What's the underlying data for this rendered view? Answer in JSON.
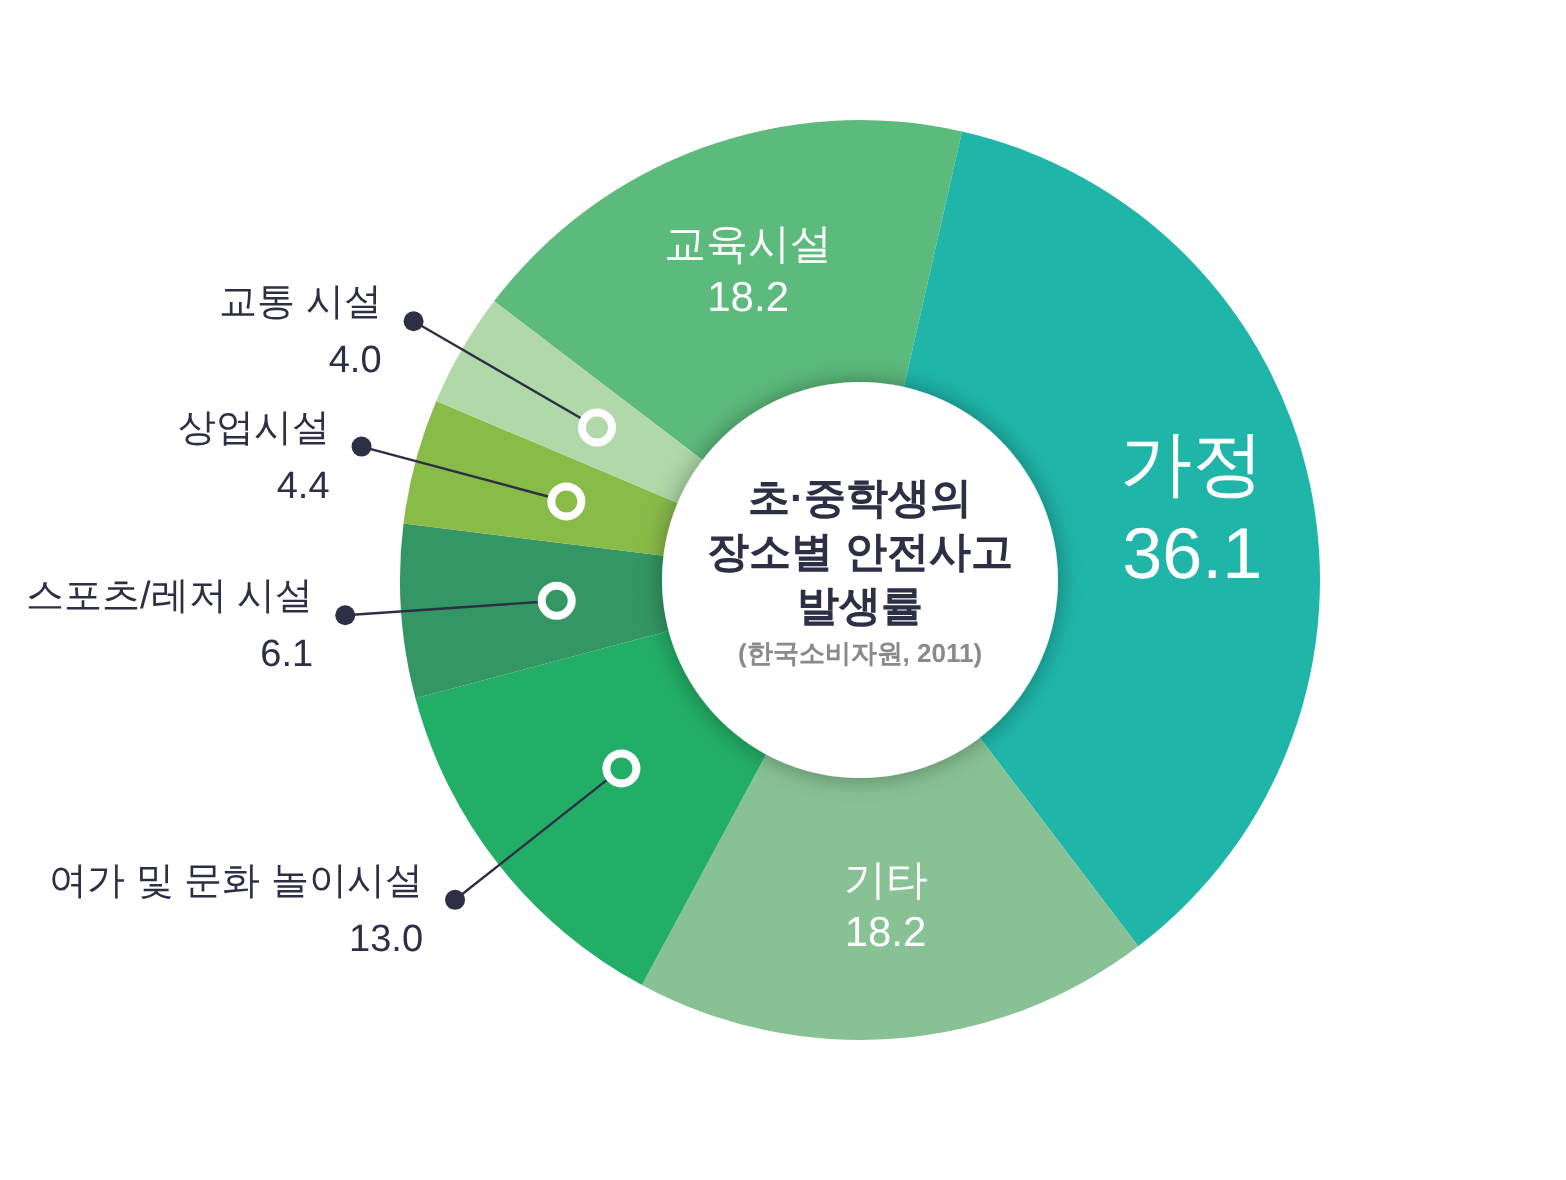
{
  "chart_data": {
    "type": "donut",
    "title": "초·중학생의 장소별 안전사고 발생률",
    "subtitle": "(한국소비자원, 2011)",
    "categories": [
      "교육시설",
      "가정",
      "기타",
      "여가 및 문화 놀이시설",
      "스포츠/레저 시설",
      "상업시설",
      "교통 시설"
    ],
    "values": [
      18.2,
      36.1,
      18.2,
      13.0,
      6.1,
      4.4,
      4.0
    ],
    "value_labels": [
      "18.2",
      "36.1",
      "18.2",
      "13.0",
      "6.1",
      "4.4",
      "4.0"
    ],
    "colors": [
      "#5cba7c",
      "#1fb5a9",
      "#88c194",
      "#22ae66",
      "#339664",
      "#89bb48",
      "#b0d8a9"
    ]
  }
}
